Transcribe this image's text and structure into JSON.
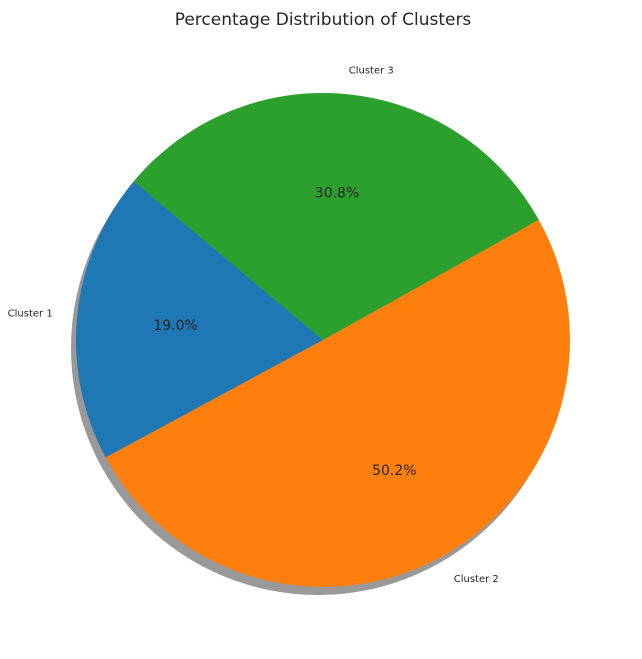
{
  "chart_data": {
    "type": "pie",
    "title": "Percentage Distribution of Clusters",
    "categories": [
      "Cluster 1",
      "Cluster 2",
      "Cluster 3"
    ],
    "values": [
      19.0,
      50.2,
      30.8
    ],
    "percent_labels": [
      "19.0%",
      "50.2%",
      "30.8%"
    ],
    "colors": [
      "#1f77b4",
      "#ff7f0e",
      "#2ca02c"
    ],
    "shadow": true,
    "legend": "none"
  }
}
